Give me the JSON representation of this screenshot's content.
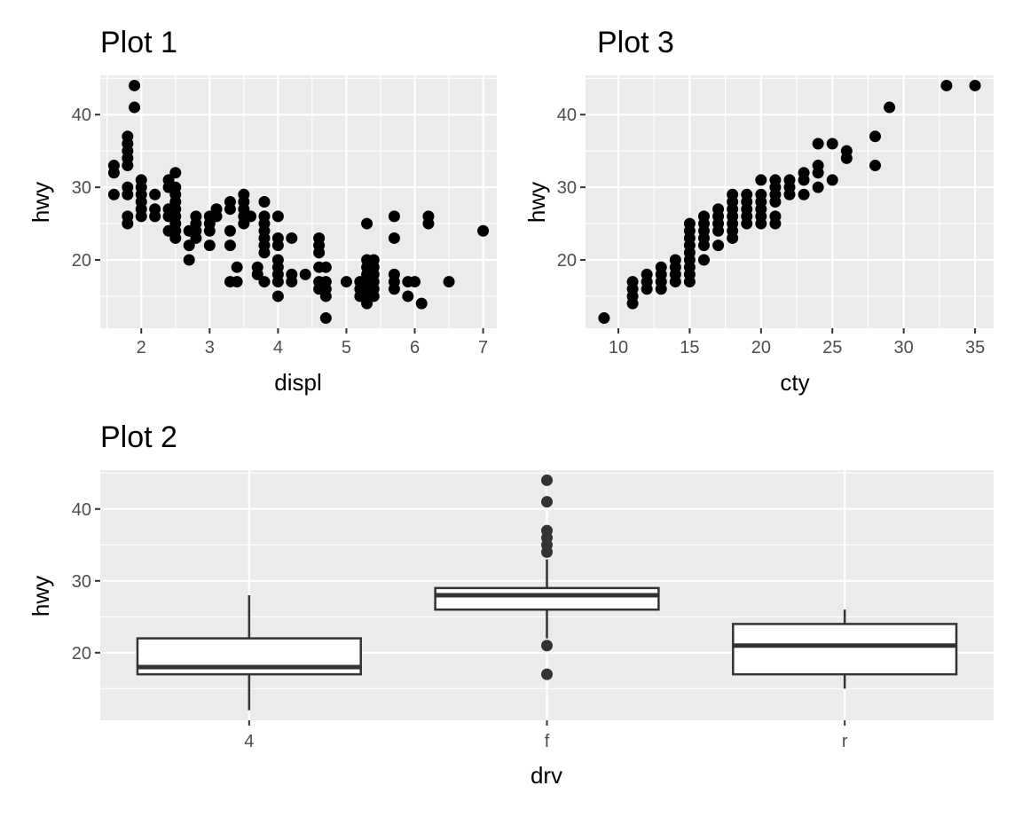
{
  "chart_data": [
    {
      "type": "scatter",
      "title": "Plot 1",
      "xlabel": "displ",
      "ylabel": "hwy",
      "xlim": [
        1.4,
        7.2
      ],
      "ylim": [
        10.6,
        45.4
      ],
      "xticks": [
        2,
        3,
        4,
        5,
        6,
        7
      ],
      "yticks": [
        20,
        30,
        40
      ],
      "grid": true,
      "point_color": "#000000",
      "points": [
        [
          1.6,
          29
        ],
        [
          1.6,
          32
        ],
        [
          1.6,
          33
        ],
        [
          1.8,
          25
        ],
        [
          1.8,
          26
        ],
        [
          1.8,
          29
        ],
        [
          1.8,
          30
        ],
        [
          1.8,
          33
        ],
        [
          1.8,
          34
        ],
        [
          1.8,
          35
        ],
        [
          1.8,
          36
        ],
        [
          1.8,
          37
        ],
        [
          1.9,
          41
        ],
        [
          1.9,
          44
        ],
        [
          2.0,
          26
        ],
        [
          2.0,
          27
        ],
        [
          2.0,
          28
        ],
        [
          2.0,
          29
        ],
        [
          2.0,
          30
        ],
        [
          2.0,
          31
        ],
        [
          2.2,
          26
        ],
        [
          2.2,
          27
        ],
        [
          2.2,
          29
        ],
        [
          2.4,
          24
        ],
        [
          2.4,
          26
        ],
        [
          2.4,
          27
        ],
        [
          2.4,
          30
        ],
        [
          2.4,
          31
        ],
        [
          2.5,
          23
        ],
        [
          2.5,
          24
        ],
        [
          2.5,
          25
        ],
        [
          2.5,
          26
        ],
        [
          2.5,
          27
        ],
        [
          2.5,
          28
        ],
        [
          2.5,
          29
        ],
        [
          2.5,
          30
        ],
        [
          2.5,
          32
        ],
        [
          2.7,
          20
        ],
        [
          2.7,
          22
        ],
        [
          2.7,
          24
        ],
        [
          2.8,
          23
        ],
        [
          2.8,
          24
        ],
        [
          2.8,
          25
        ],
        [
          2.8,
          26
        ],
        [
          3.0,
          22
        ],
        [
          3.0,
          24
        ],
        [
          3.0,
          25
        ],
        [
          3.0,
          26
        ],
        [
          3.1,
          26
        ],
        [
          3.1,
          27
        ],
        [
          3.3,
          17
        ],
        [
          3.3,
          22
        ],
        [
          3.3,
          24
        ],
        [
          3.3,
          27
        ],
        [
          3.3,
          28
        ],
        [
          3.4,
          17
        ],
        [
          3.4,
          19
        ],
        [
          3.5,
          25
        ],
        [
          3.5,
          26
        ],
        [
          3.5,
          27
        ],
        [
          3.5,
          28
        ],
        [
          3.5,
          29
        ],
        [
          3.6,
          26
        ],
        [
          3.7,
          18
        ],
        [
          3.7,
          19
        ],
        [
          3.8,
          17
        ],
        [
          3.8,
          21
        ],
        [
          3.8,
          22
        ],
        [
          3.8,
          23
        ],
        [
          3.8,
          24
        ],
        [
          3.8,
          25
        ],
        [
          3.8,
          26
        ],
        [
          3.8,
          28
        ],
        [
          4.0,
          15
        ],
        [
          4.0,
          17
        ],
        [
          4.0,
          18
        ],
        [
          4.0,
          19
        ],
        [
          4.0,
          20
        ],
        [
          4.0,
          22
        ],
        [
          4.0,
          23
        ],
        [
          4.0,
          26
        ],
        [
          4.2,
          17
        ],
        [
          4.2,
          18
        ],
        [
          4.2,
          23
        ],
        [
          4.4,
          18
        ],
        [
          4.6,
          16
        ],
        [
          4.6,
          17
        ],
        [
          4.6,
          19
        ],
        [
          4.6,
          21
        ],
        [
          4.6,
          22
        ],
        [
          4.6,
          23
        ],
        [
          4.7,
          12
        ],
        [
          4.7,
          15
        ],
        [
          4.7,
          16
        ],
        [
          4.7,
          17
        ],
        [
          4.7,
          19
        ],
        [
          5.0,
          17
        ],
        [
          5.2,
          15
        ],
        [
          5.2,
          16
        ],
        [
          5.2,
          17
        ],
        [
          5.3,
          14
        ],
        [
          5.3,
          15
        ],
        [
          5.3,
          16
        ],
        [
          5.3,
          17
        ],
        [
          5.3,
          18
        ],
        [
          5.3,
          19
        ],
        [
          5.3,
          20
        ],
        [
          5.3,
          25
        ],
        [
          5.4,
          15
        ],
        [
          5.4,
          16
        ],
        [
          5.4,
          17
        ],
        [
          5.4,
          18
        ],
        [
          5.4,
          19
        ],
        [
          5.4,
          20
        ],
        [
          5.7,
          16
        ],
        [
          5.7,
          17
        ],
        [
          5.7,
          18
        ],
        [
          5.7,
          23
        ],
        [
          5.7,
          26
        ],
        [
          5.9,
          15
        ],
        [
          5.9,
          17
        ],
        [
          6.0,
          17
        ],
        [
          6.1,
          14
        ],
        [
          6.2,
          25
        ],
        [
          6.2,
          26
        ],
        [
          6.5,
          17
        ],
        [
          7.0,
          24
        ]
      ]
    },
    {
      "type": "scatter",
      "title": "Plot 3",
      "xlabel": "cty",
      "ylabel": "hwy",
      "xlim": [
        7.7,
        36.3
      ],
      "ylim": [
        10.6,
        45.4
      ],
      "xticks": [
        10,
        15,
        20,
        25,
        30,
        35
      ],
      "yticks": [
        20,
        30,
        40
      ],
      "grid": true,
      "point_color": "#000000",
      "points": [
        [
          9,
          12
        ],
        [
          11,
          14
        ],
        [
          11,
          15
        ],
        [
          11,
          16
        ],
        [
          11,
          17
        ],
        [
          12,
          16
        ],
        [
          12,
          17
        ],
        [
          12,
          18
        ],
        [
          13,
          16
        ],
        [
          13,
          17
        ],
        [
          13,
          18
        ],
        [
          13,
          19
        ],
        [
          14,
          17
        ],
        [
          14,
          18
        ],
        [
          14,
          19
        ],
        [
          14,
          20
        ],
        [
          15,
          17
        ],
        [
          15,
          18
        ],
        [
          15,
          19
        ],
        [
          15,
          20
        ],
        [
          15,
          21
        ],
        [
          15,
          22
        ],
        [
          15,
          23
        ],
        [
          15,
          24
        ],
        [
          15,
          25
        ],
        [
          16,
          20
        ],
        [
          16,
          22
        ],
        [
          16,
          23
        ],
        [
          16,
          24
        ],
        [
          16,
          25
        ],
        [
          16,
          26
        ],
        [
          17,
          22
        ],
        [
          17,
          24
        ],
        [
          17,
          25
        ],
        [
          17,
          26
        ],
        [
          17,
          27
        ],
        [
          18,
          23
        ],
        [
          18,
          24
        ],
        [
          18,
          25
        ],
        [
          18,
          26
        ],
        [
          18,
          27
        ],
        [
          18,
          28
        ],
        [
          18,
          29
        ],
        [
          19,
          25
        ],
        [
          19,
          26
        ],
        [
          19,
          27
        ],
        [
          19,
          28
        ],
        [
          19,
          29
        ],
        [
          20,
          25
        ],
        [
          20,
          26
        ],
        [
          20,
          27
        ],
        [
          20,
          28
        ],
        [
          20,
          29
        ],
        [
          20,
          31
        ],
        [
          21,
          25
        ],
        [
          21,
          26
        ],
        [
          21,
          28
        ],
        [
          21,
          29
        ],
        [
          21,
          30
        ],
        [
          21,
          31
        ],
        [
          22,
          29
        ],
        [
          22,
          30
        ],
        [
          22,
          31
        ],
        [
          23,
          29
        ],
        [
          23,
          31
        ],
        [
          23,
          32
        ],
        [
          24,
          30
        ],
        [
          24,
          32
        ],
        [
          24,
          33
        ],
        [
          24,
          36
        ],
        [
          25,
          31
        ],
        [
          25,
          36
        ],
        [
          26,
          34
        ],
        [
          26,
          35
        ],
        [
          28,
          33
        ],
        [
          28,
          37
        ],
        [
          29,
          41
        ],
        [
          33,
          44
        ],
        [
          35,
          44
        ]
      ]
    },
    {
      "type": "boxplot",
      "title": "Plot 2",
      "xlabel": "drv",
      "ylabel": "hwy",
      "categories": [
        "4",
        "f",
        "r"
      ],
      "ylim": [
        10.6,
        45.4
      ],
      "yticks": [
        20,
        30,
        40
      ],
      "grid": true,
      "box_fill": "#ffffff",
      "box_stroke": "#333333",
      "boxes": [
        {
          "category": "4",
          "lower_whisker": 12,
          "q1": 17,
          "median": 18,
          "q3": 22,
          "upper_whisker": 28,
          "outliers": []
        },
        {
          "category": "f",
          "lower_whisker": 22,
          "q1": 26,
          "median": 28,
          "q3": 29,
          "upper_whisker": 33,
          "outliers": [
            17,
            21,
            34,
            35,
            36,
            37,
            41,
            44
          ]
        },
        {
          "category": "r",
          "lower_whisker": 15,
          "q1": 17,
          "median": 21,
          "q3": 24,
          "upper_whisker": 26,
          "outliers": []
        }
      ]
    }
  ]
}
